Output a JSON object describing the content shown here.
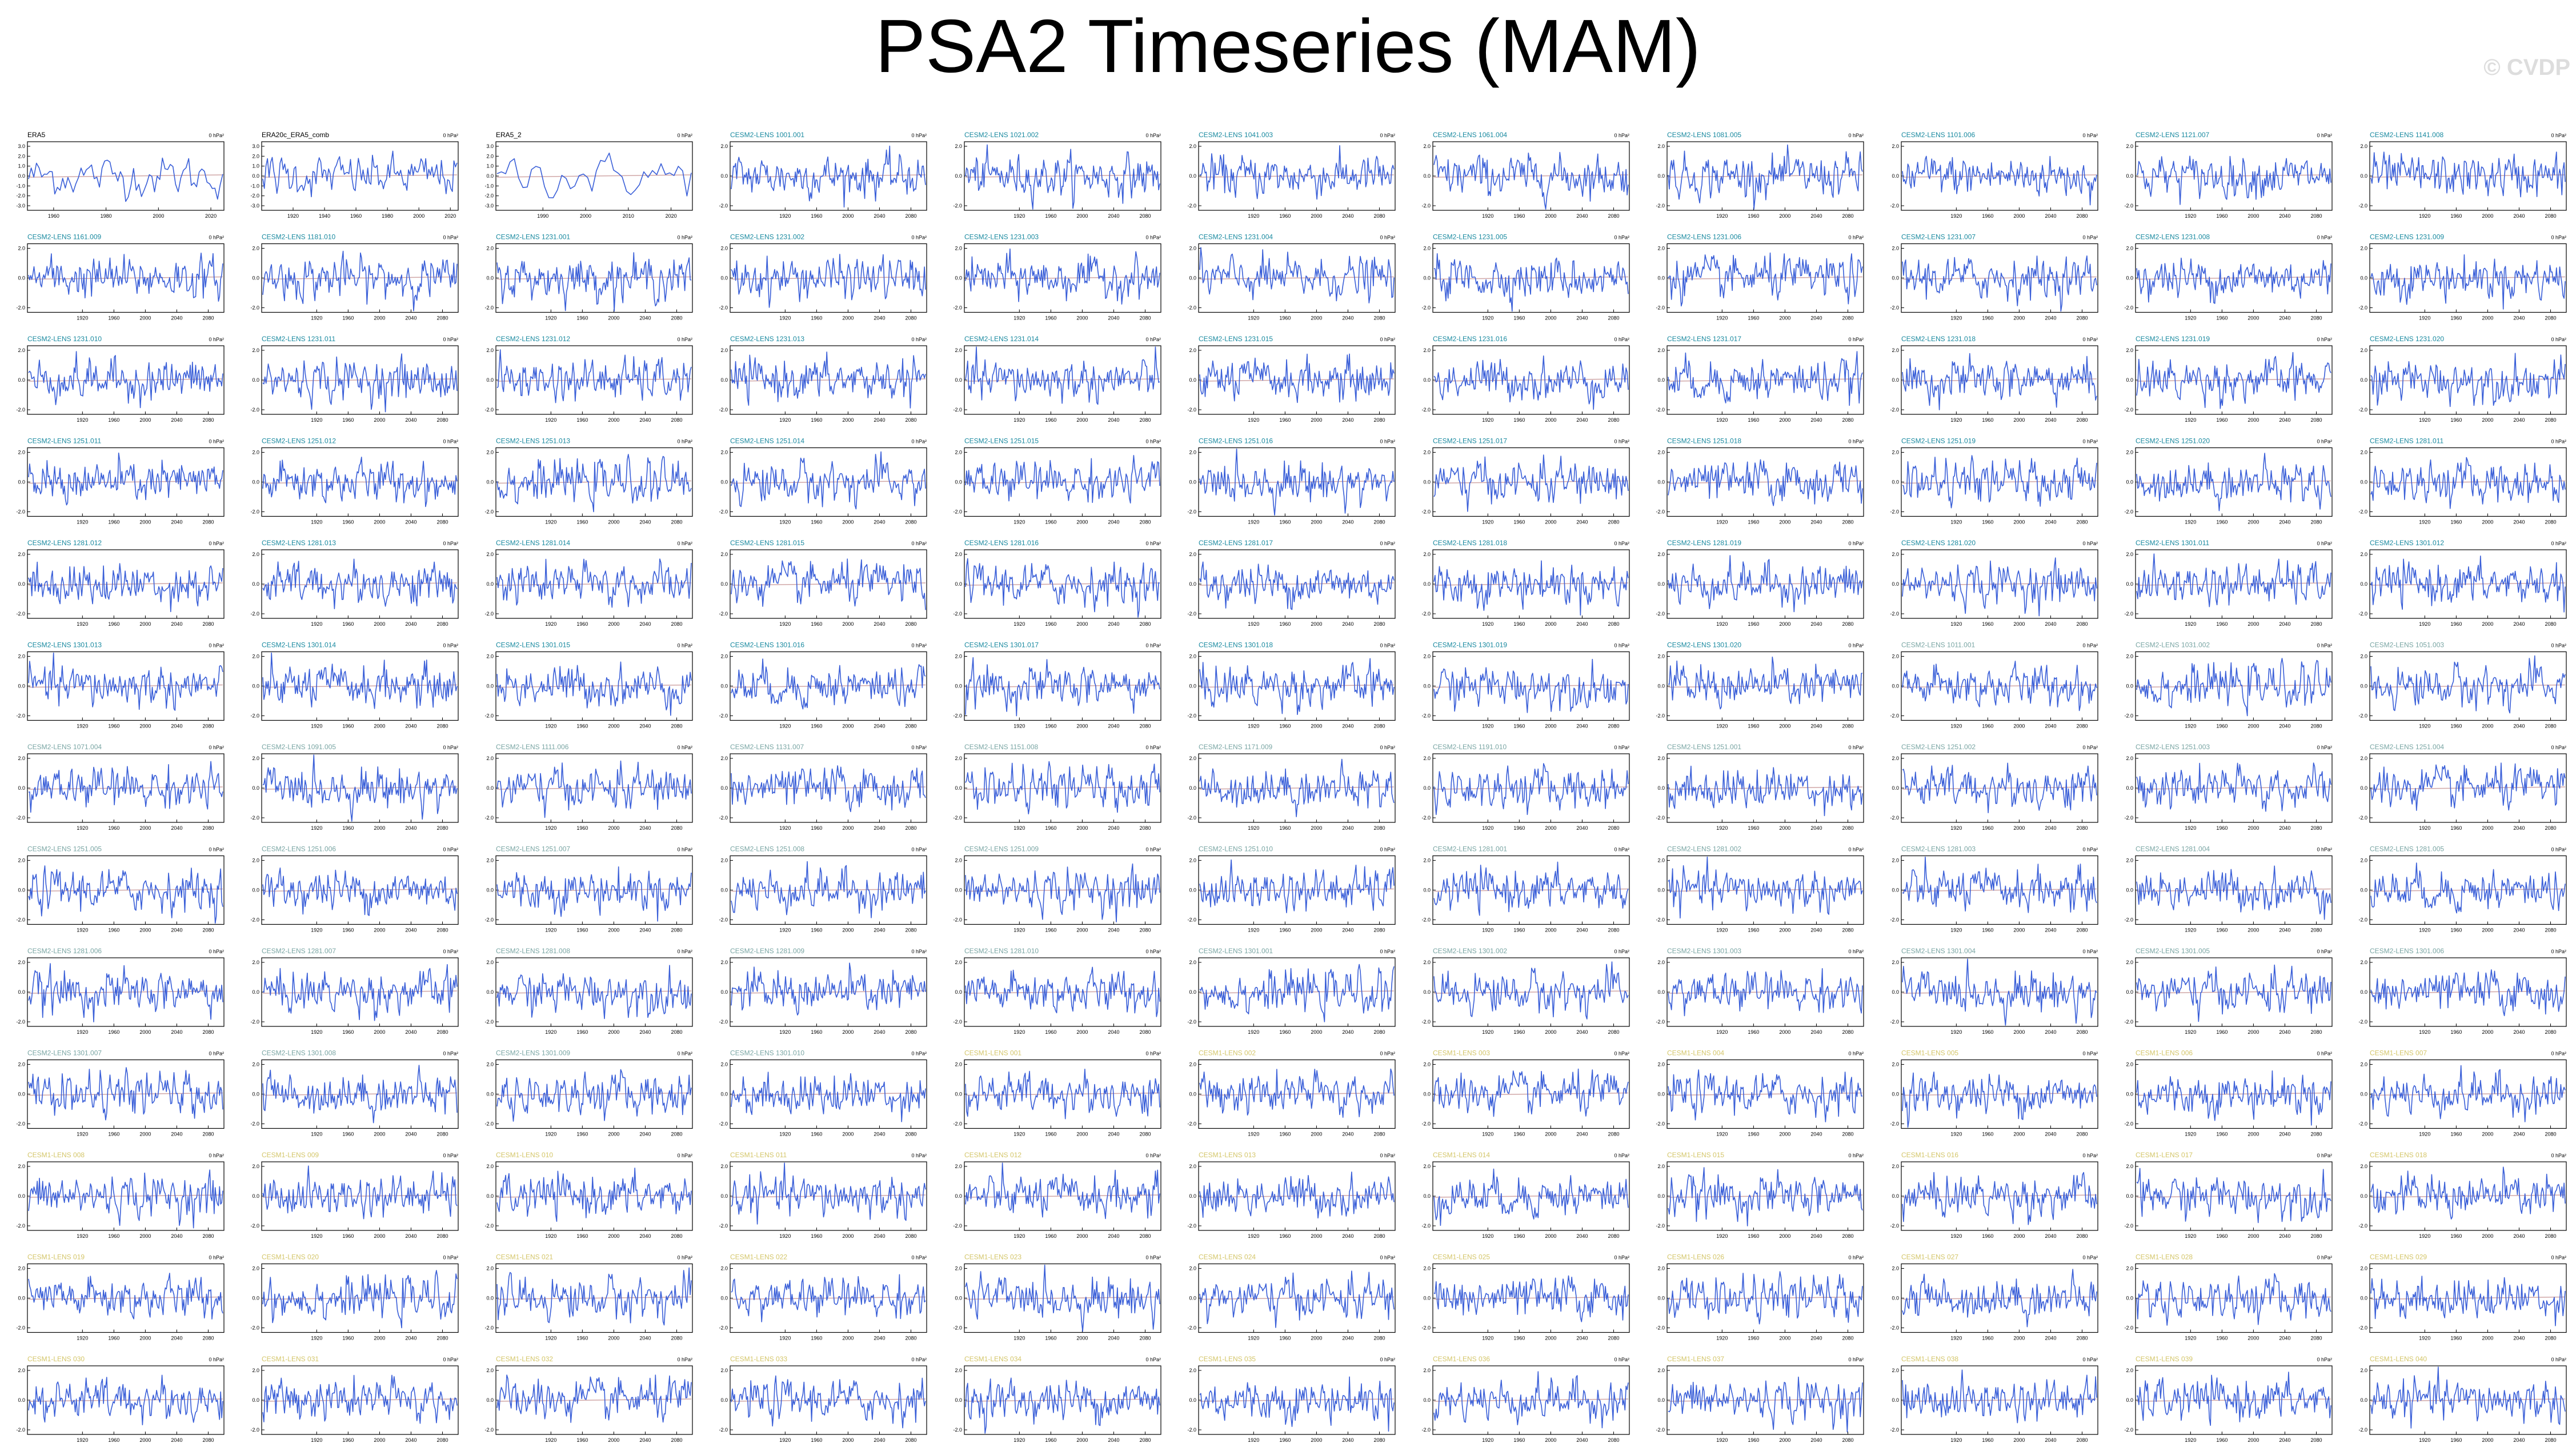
{
  "title": "PSA2 Timeseries (MAM)",
  "watermark": "© CVDP",
  "colors": {
    "line": "#3a5fd8",
    "trend": "#d0a7a7",
    "obs_label": "#000000",
    "cesm2_label": "#1a8aa0",
    "cesm2_light_label": "#7aa6a4",
    "cesm1_label": "#d4c66a",
    "axis": "#000000"
  },
  "chart_data": {
    "type": "line",
    "panel_grid": {
      "rows": 13,
      "cols": 11
    },
    "obs_panels": [
      {
        "label": "ERA5",
        "units": "0 hPa²",
        "x_range": [
          1950,
          2025
        ],
        "x_ticks": [
          "1960",
          "1980",
          "2000",
          "2020"
        ],
        "y_ticks": [
          "3.0",
          "2.0",
          "1.0",
          "0.0",
          "-1.0",
          "-2.0",
          "-3.0"
        ]
      },
      {
        "label": "ERA20c_ERA5_comb",
        "units": "0 hPa²",
        "x_range": [
          1900,
          2025
        ],
        "x_ticks": [
          "1920",
          "1940",
          "1960",
          "1980",
          "2000",
          "2020"
        ],
        "y_ticks": [
          "3.0",
          "2.0",
          "1.0",
          "0.0",
          "-1.0",
          "-2.0",
          "-3.0"
        ]
      },
      {
        "label": "ERA5_2",
        "units": "0 hPa²",
        "x_range": [
          1979,
          2025
        ],
        "x_ticks": [
          "1990",
          "2000",
          "2010",
          "2020"
        ],
        "y_ticks": [
          "3.0",
          "2.0",
          "1.0",
          "0.0",
          "-1.0",
          "-2.0",
          "-3.0"
        ]
      }
    ],
    "model_x_range": [
      1850,
      2100
    ],
    "model_x_ticks": [
      "1920",
      "1960",
      "2000",
      "2040",
      "2080"
    ],
    "model_y_ticks": [
      "2.0",
      "0.0",
      "-2.0"
    ],
    "model_units": "0 hPa²",
    "series_groups": [
      {
        "prefix": "CESM2-LENS",
        "count": 100,
        "style": "cesm2"
      },
      {
        "prefix": "CESM1-LENS",
        "count": 40,
        "style": "cesm1"
      }
    ],
    "cesm2_members": [
      "1001.001",
      "1021.002",
      "1041.003",
      "1061.004",
      "1081.005",
      "1101.006",
      "1121.007",
      "1141.008",
      "1161.009",
      "1181.010",
      "1231.001",
      "1231.002",
      "1231.003",
      "1231.004",
      "1231.005",
      "1231.006",
      "1231.007",
      "1231.008",
      "1231.009",
      "1231.010",
      "1231.011",
      "1231.012",
      "1231.013",
      "1231.014",
      "1231.015",
      "1231.016",
      "1231.017",
      "1231.018",
      "1231.019",
      "1231.020",
      "1251.011",
      "1251.012",
      "1251.013",
      "1251.014",
      "1251.015",
      "1251.016",
      "1251.017",
      "1251.018",
      "1251.019",
      "1251.020",
      "1281.011",
      "1281.012",
      "1281.013",
      "1281.014",
      "1281.015",
      "1281.016",
      "1281.017",
      "1281.018",
      "1281.019",
      "1281.020",
      "1301.011",
      "1301.012",
      "1301.013",
      "1301.014",
      "1301.015",
      "1301.016",
      "1301.017",
      "1301.018",
      "1301.019",
      "1301.020",
      "1011.001",
      "1031.002",
      "1051.003",
      "1071.004",
      "1091.005",
      "1111.006",
      "1131.007",
      "1151.008",
      "1171.009",
      "1191.010",
      "1251.001",
      "1251.002",
      "1251.003",
      "1251.004",
      "1251.005",
      "1251.006",
      "1251.007",
      "1251.008",
      "1251.009",
      "1251.010",
      "1281.001",
      "1281.002",
      "1281.003",
      "1281.004",
      "1281.005",
      "1281.006",
      "1281.007",
      "1281.008",
      "1281.009",
      "1281.010",
      "1301.001",
      "1301.002",
      "1301.003",
      "1301.004",
      "1301.005",
      "1301.006",
      "1301.007",
      "1301.008",
      "1301.009",
      "1301.010"
    ]
  }
}
